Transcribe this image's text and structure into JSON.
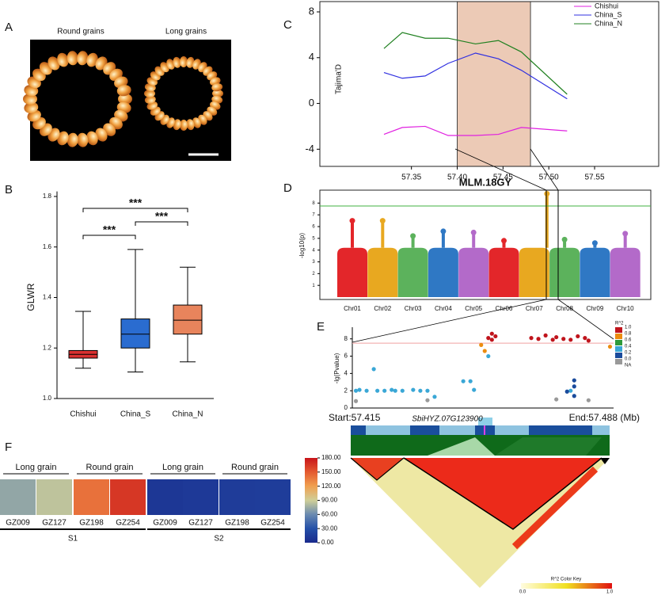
{
  "image_panel": {
    "label": "A",
    "captions": [
      "Round grains",
      "Long grains"
    ]
  },
  "chart_data": [
    {
      "label": "B",
      "type": "box",
      "ylabel": "GLWR",
      "categories": [
        "Chishui",
        "China_S",
        "China_N"
      ],
      "colors": [
        "#d93030",
        "#2a6cd0",
        "#e8845c"
      ],
      "whisker_low": [
        1.12,
        1.105,
        1.145
      ],
      "q1": [
        1.16,
        1.2,
        1.255
      ],
      "median": [
        1.175,
        1.255,
        1.31
      ],
      "q3": [
        1.19,
        1.315,
        1.37
      ],
      "whisker_high": [
        1.345,
        1.59,
        1.52
      ],
      "ylim": [
        1.0,
        1.82
      ],
      "yticks": [
        {
          "value": 1.0,
          "label": "1.0"
        },
        1.2,
        1.4,
        1.6,
        1.8
      ],
      "comparisons": [
        {
          "groups": [
            "Chishui",
            "China_N"
          ],
          "label": "***"
        },
        {
          "groups": [
            "China_S",
            "China_N"
          ],
          "label": "***"
        },
        {
          "groups": [
            "Chishui",
            "China_S"
          ],
          "label": "***"
        }
      ]
    },
    {
      "label": "C",
      "type": "line",
      "ylabel": "Tajima'D",
      "x": [
        57.32,
        57.34,
        57.365,
        57.39,
        57.42,
        57.445,
        57.47,
        57.52
      ],
      "series": [
        {
          "name": "Chishui",
          "color": "#e020e0",
          "values": [
            -2.7,
            -2.1,
            -2.0,
            -2.8,
            -2.8,
            -2.7,
            -2.1,
            -2.4
          ]
        },
        {
          "name": "China_S",
          "color": "#3030e0",
          "values": [
            2.7,
            2.2,
            2.4,
            3.5,
            4.4,
            3.9,
            2.9,
            0.4
          ]
        },
        {
          "name": "China_N",
          "color": "#208020",
          "values": [
            4.8,
            6.2,
            5.7,
            5.7,
            5.2,
            5.5,
            4.5,
            0.8
          ]
        }
      ],
      "highlight": [
        57.4,
        57.48
      ],
      "xlim": [
        57.25,
        57.62
      ],
      "xticks": [
        57.35,
        {
          "value": 57.4,
          "label": "57.40"
        },
        57.45,
        {
          "value": 57.5,
          "label": "57.50"
        },
        57.55
      ],
      "ylim": [
        -5.5,
        8.9
      ],
      "yticks": [
        -4,
        0,
        4,
        8
      ],
      "legend": "top-right"
    },
    {
      "label": "D",
      "type": "manhattan",
      "title": "MLM.18GY",
      "ylabel": "-log10(p)",
      "categories": [
        "Chr01",
        "Chr02",
        "Chr03",
        "Chr04",
        "Chr05",
        "Chr06",
        "Chr07",
        "Chr08",
        "Chr09",
        "Chr10"
      ],
      "colors": [
        "#e3262a",
        "#e8a820",
        "#5cb25c",
        "#2f78c4",
        "#b36ac9",
        "#e3262a",
        "#e8a820",
        "#5cb25c",
        "#2f78c4",
        "#b36ac9"
      ],
      "values": [
        6.5,
        6.5,
        5.2,
        5.6,
        5.5,
        4.8,
        8.8,
        4.9,
        4.6,
        5.4
      ],
      "threshold": 7.75,
      "ylim": [
        -0.2,
        9.1
      ],
      "yticks": [
        1,
        2,
        3,
        4,
        5,
        6,
        7,
        8
      ]
    },
    {
      "label": "E",
      "type": "scatter",
      "ylabel": "-lg(Pvalue)",
      "series": [
        {
          "color": "#c0141c",
          "x": [
            57.453,
            57.454,
            57.454,
            57.455,
            57.465,
            57.467,
            57.469,
            57.471,
            57.472,
            57.474,
            57.476,
            57.478,
            57.48,
            57.481
          ],
          "values": [
            8.1,
            8.6,
            7.9,
            8.3,
            8.1,
            8.0,
            8.4,
            7.9,
            8.2,
            8.0,
            7.9,
            8.3,
            8.1,
            7.8
          ]
        },
        {
          "color": "#ec8c10",
          "x": [
            57.451,
            57.452,
            57.487
          ],
          "values": [
            7.3,
            6.6,
            7.1
          ]
        },
        {
          "color": "#2e9a3a",
          "x": [],
          "values": []
        },
        {
          "color": "#3aa7d6",
          "x": [
            57.416,
            57.417,
            57.419,
            57.421,
            57.422,
            57.424,
            57.426,
            57.427,
            57.429,
            57.432,
            57.434,
            57.436,
            57.438,
            57.446,
            57.448,
            57.449,
            57.453,
            57.476
          ],
          "values": [
            2.0,
            2.1,
            2.0,
            4.5,
            2.0,
            2.0,
            2.1,
            2.0,
            2.0,
            2.1,
            2.0,
            2.0,
            1.3,
            3.1,
            3.1,
            2.1,
            6.0,
            2.0
          ]
        },
        {
          "color": "#1a4b9c",
          "x": [
            57.477,
            57.477,
            57.475,
            57.477
          ],
          "values": [
            3.2,
            2.5,
            1.9,
            1.4
          ]
        },
        {
          "color": "#999999",
          "x": [
            57.416,
            57.436,
            57.472,
            57.481
          ],
          "values": [
            0.8,
            0.9,
            1.0,
            0.9
          ]
        }
      ],
      "legend_title": "R^2",
      "legend_labels": [
        "1.0",
        "0.8",
        "0.6",
        "0.4",
        "0.2",
        "0.0",
        "NA"
      ],
      "threshold": 7.5,
      "xlim": [
        57.415,
        57.488
      ],
      "ylim": [
        0,
        9.35
      ],
      "yticks": [
        0,
        2,
        4,
        6,
        8
      ],
      "start_label": "Start:57.415",
      "gene_label": "SbiHYZ.07G123900",
      "end_label": "End:57.488 (Mb)",
      "ld_key_title": "R^2 Color Key",
      "ld_key_ticks": [
        "0.0",
        "1.0"
      ]
    },
    {
      "label": "F",
      "type": "heatmap",
      "categories": [
        "GZ009",
        "GZ127",
        "GZ198",
        "GZ254",
        "GZ009",
        "GZ127",
        "GZ198",
        "GZ254"
      ],
      "values": [
        72,
        85,
        140,
        165,
        10,
        12,
        14,
        15
      ],
      "subgroups": [
        "Long grain",
        "Round grain",
        "Long grain",
        "Round grain"
      ],
      "groups": [
        "S1",
        "S2"
      ],
      "colorscale": [
        "#1a2a8c",
        "#2450a8",
        "#6a8ab0",
        "#cfcf98",
        "#f0a050",
        "#e45a30",
        "#c8141a"
      ],
      "clim": [
        0,
        180
      ],
      "cticks": [
        {
          "value": 0,
          "label": "0.00"
        },
        {
          "value": 30,
          "label": "30.00"
        },
        {
          "value": 60,
          "label": "60.00"
        },
        {
          "value": 90,
          "label": "90.00"
        },
        {
          "value": 120,
          "label": "120.00"
        },
        {
          "value": 150,
          "label": "150.00"
        },
        {
          "value": 180,
          "label": "180.00"
        }
      ]
    }
  ]
}
